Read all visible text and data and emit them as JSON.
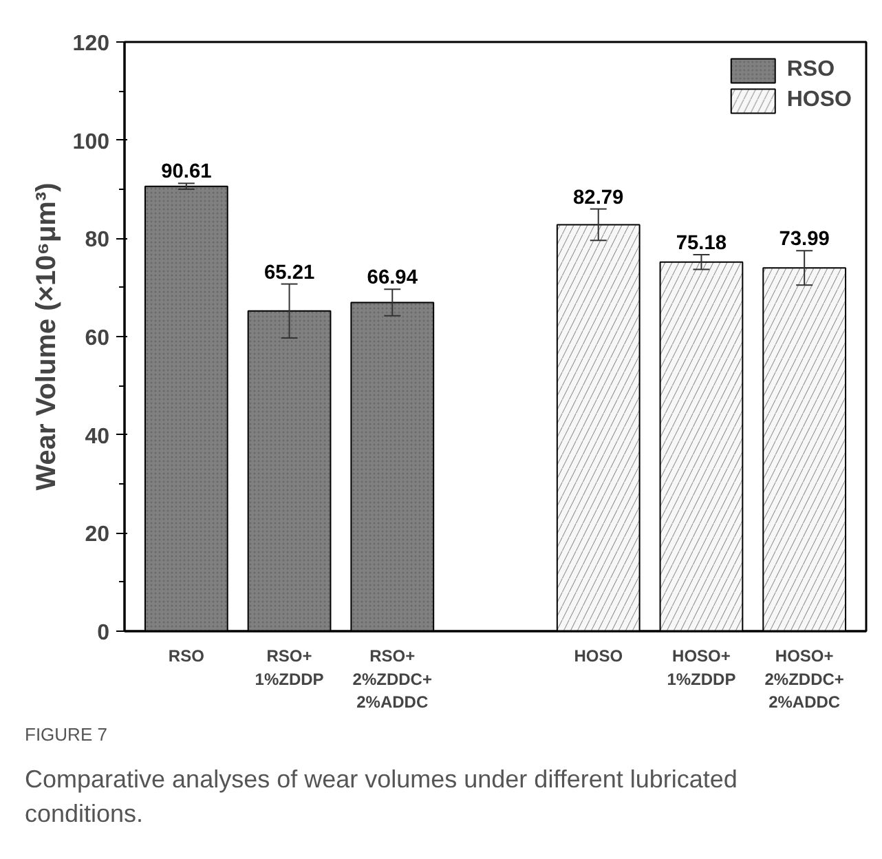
{
  "chart_data": {
    "type": "bar",
    "ylabel": "Wear Volume (×10⁶μm³)",
    "categories": [
      "RSO",
      "RSO+\n1%ZDDP",
      "RSO+\n2%ZDDC+\n2%ADDC",
      null,
      "HOSO",
      "HOSO+\n1%ZDDP",
      "HOSO+\n2%ZDDC+\n2%ADDC"
    ],
    "series": [
      {
        "name": "RSO",
        "color": "#808080",
        "values": [
          90.61,
          65.21,
          66.94,
          null,
          null,
          null,
          null
        ],
        "errors": [
          0.6,
          5.5,
          2.7,
          null,
          null,
          null,
          null
        ]
      },
      {
        "name": "HOSO",
        "color": "#f7f7f7",
        "values": [
          null,
          null,
          null,
          null,
          82.79,
          75.18,
          73.99
        ],
        "errors": [
          null,
          null,
          null,
          null,
          3.2,
          1.5,
          3.5
        ]
      }
    ],
    "ylim": [
      0,
      120
    ],
    "yticks": [
      0,
      20,
      40,
      60,
      80,
      100,
      120
    ],
    "data_labels": true,
    "legend": "top right",
    "grid": false,
    "annotations": [
      "FIGURE 7",
      "Comparative analyses of wear volumes under different lubricated conditions."
    ]
  }
}
